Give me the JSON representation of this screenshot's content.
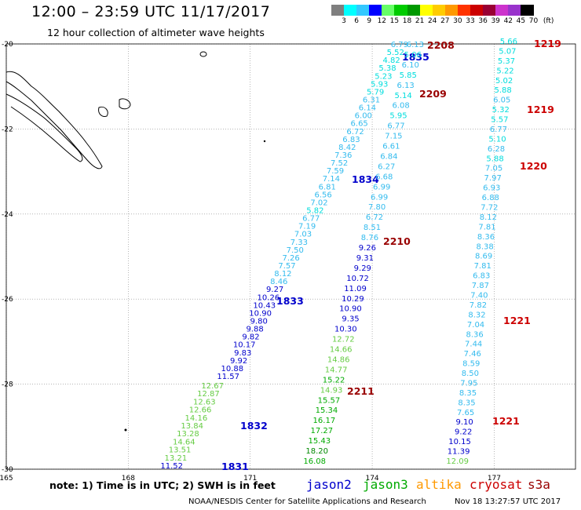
{
  "header": {
    "title": "12:00 – 23:59 UTC 11/17/2017",
    "subtitle": "12 hour collection of altimeter wave heights"
  },
  "scale": {
    "labels": [
      "3",
      "6",
      "9",
      "12",
      "15",
      "18",
      "21",
      "24",
      "27",
      "30",
      "33",
      "36",
      "39",
      "42",
      "45",
      "70"
    ],
    "unit": "(ft)",
    "colors": [
      "#7f7f7f",
      "#00ffff",
      "#33c8ff",
      "#0000ff",
      "#66ff66",
      "#00cc00",
      "#009900",
      "#ffff00",
      "#ffcc00",
      "#ff9900",
      "#ff3300",
      "#cc0000",
      "#990033",
      "#cc33cc",
      "#9933cc",
      "#000000"
    ]
  },
  "axes": {
    "x_ticks": [
      "165",
      "168",
      "171",
      "174",
      "177"
    ],
    "y_ticks": [
      "-20",
      "-22",
      "-24",
      "-26",
      "-28",
      "-30"
    ]
  },
  "footer": {
    "note": "note: 1) Time is in UTC; 2) SWH is in feet",
    "legend": [
      {
        "label": "jason2",
        "color": "#0000cc"
      },
      {
        "label": "jason3",
        "color": "#00aa00"
      },
      {
        "label": "altika",
        "color": "#ff9900"
      },
      {
        "label": "cryosat",
        "color": "#cc0000"
      },
      {
        "label": "s3a",
        "color": "#990000"
      }
    ],
    "credit": "NOAA/NESDIS Center for Satellite Applications and Research",
    "timestamp": "Nov 18 13:27:57 UTC 2017"
  },
  "tracks": [
    {
      "name": "jason2-a",
      "time_labels": [
        {
          "text": "1835",
          "color": "#0000cc"
        },
        {
          "text": "1834",
          "color": "#0000cc"
        },
        {
          "text": "1833",
          "color": "#0000cc"
        }
      ],
      "values": [
        "6.79",
        "5.52",
        "4.82",
        "5.38",
        "5.23",
        "5.93",
        "5.79",
        "6.31",
        "6.14",
        "6.00",
        "6.65",
        "6.72",
        "6.83",
        "8.42",
        "7.36",
        "7.52",
        "7.59",
        "7.14",
        "6.81",
        "6.56",
        "7.02",
        "5.82",
        "6.77",
        "7.19",
        "7.03",
        "7.33",
        "7.50",
        "7.26",
        "7.57",
        "8.12",
        "8.46",
        "9.27",
        "10.26",
        "10.43",
        "10.90",
        "9.80",
        "9.88",
        "9.82",
        "10.17",
        "9.83",
        "9.92",
        "10.88",
        "11.57"
      ]
    },
    {
      "name": "jason2-b",
      "time_labels": [
        {
          "text": "1832",
          "color": "#0000cc"
        },
        {
          "text": "1831",
          "color": "#0000cc"
        }
      ],
      "values": [
        "12.67",
        "12.87",
        "12.63",
        "12.66",
        "14.16",
        "13.84",
        "13.28",
        "14.64",
        "13.51",
        "13.21",
        "11.52"
      ]
    },
    {
      "name": "jason3",
      "time_labels": [
        {
          "text": "2208",
          "color": "#990000"
        },
        {
          "text": "2209",
          "color": "#990000"
        },
        {
          "text": "2210",
          "color": "#990000"
        },
        {
          "text": "2211",
          "color": "#990000"
        }
      ],
      "values": [
        "6.13",
        "5.06",
        "6.10",
        "5.85",
        "6.13",
        "5.14",
        "6.08",
        "5.95",
        "6.77",
        "7.15",
        "6.61",
        "6.84",
        "6.27",
        "6.68",
        "6.99",
        "6.99",
        "7.80",
        "6.72",
        "8.51",
        "8.76",
        "9.26",
        "9.31",
        "9.29",
        "10.72",
        "11.09",
        "10.29",
        "10.90",
        "9.35",
        "10.30",
        "12.72",
        "14.66",
        "14.86",
        "14.77",
        "15.22",
        "14.93",
        "15.57",
        "15.34",
        "16.17",
        "17.27",
        "15.43",
        "18.20",
        "16.08"
      ]
    },
    {
      "name": "cryosat",
      "time_labels": [
        {
          "text": "1219",
          "color": "#cc0000"
        },
        {
          "text": "1219",
          "color": "#cc0000"
        },
        {
          "text": "1220",
          "color": "#cc0000"
        },
        {
          "text": "1221",
          "color": "#cc0000"
        },
        {
          "text": "1221",
          "color": "#cc0000"
        }
      ],
      "values": [
        "5.66",
        "5.07",
        "5.37",
        "5.22",
        "5.02",
        "5.88",
        "6.05",
        "5.32",
        "5.57",
        "6.77",
        "5.10",
        "6.28",
        "5.88",
        "7.05",
        "7.97",
        "6.93",
        "6.88",
        "7.72",
        "8.12",
        "7.81",
        "8.36",
        "8.38",
        "8.69",
        "7.81",
        "6.83",
        "7.87",
        "7.40",
        "7.82",
        "8.32",
        "7.04",
        "8.36",
        "7.44",
        "7.46",
        "8.59",
        "8.50",
        "7.95",
        "8.35",
        "8.35",
        "7.65",
        "9.10",
        "9.22",
        "10.15",
        "11.39",
        "12.09"
      ]
    }
  ]
}
